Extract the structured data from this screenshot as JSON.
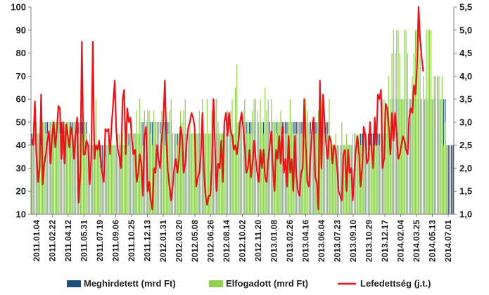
{
  "chart_data": {
    "type": "bar+line",
    "title": "",
    "x_tick_labels": [
      "2011.01.04",
      "2011.02.22",
      "2011.04.12",
      "2011.05.31",
      "2011.07.19",
      "2011.09.06",
      "2011.10.25",
      "2011.12.13",
      "2012.01.31",
      "2012.03.20",
      "2012.05.08",
      "2012.06.26",
      "2012.08.14",
      "2012.10.02",
      "2012.11.20",
      "2013.01.08",
      "2013.02.26",
      "2013.04.16",
      "2013.06.04",
      "2013.07.23",
      "2013.09.10",
      "2013.10.29",
      "2013.12.17",
      "2014.02.04",
      "2014.03.25",
      "2014.05.13",
      "2014.07.01"
    ],
    "y_left": {
      "range": [
        10,
        100
      ],
      "ticks": [
        10,
        20,
        30,
        40,
        50,
        60,
        70,
        80,
        90,
        100
      ]
    },
    "y_right": {
      "range": [
        1.0,
        5.5
      ],
      "ticks": [
        "1,0",
        "1,5",
        "2,0",
        "2,5",
        "3,0",
        "3,5",
        "4,0",
        "4,5",
        "5,0",
        "5,5"
      ]
    },
    "legend": {
      "position": "bottom",
      "items": [
        "Meghirdetett (mrd Ft)",
        "Elfogadott (mrd Ft)",
        "Lefedettség (j.t.)"
      ]
    },
    "colors": {
      "announced": "#1f4e79",
      "accepted": "#92d050",
      "coverage": "#e8141a",
      "axis": "#7f7f7f"
    },
    "series": [
      {
        "name": "Meghirdetett (mrd Ft)",
        "axis": "left",
        "kind": "bar",
        "values": [
          45,
          45,
          45,
          45,
          45,
          45,
          45,
          50,
          50,
          50,
          50,
          50,
          50,
          50,
          50,
          50,
          50,
          50,
          50,
          50,
          50,
          50,
          50,
          50,
          50,
          50,
          50,
          50,
          50,
          50,
          50,
          50,
          50,
          50,
          50,
          50,
          40,
          40,
          40,
          40,
          40,
          40,
          40,
          40,
          40,
          40,
          40,
          40,
          40,
          40,
          40,
          40,
          40,
          40,
          40,
          40,
          40,
          40,
          40,
          40,
          40,
          45,
          45,
          45,
          45,
          45,
          45,
          45,
          45,
          45,
          50,
          50,
          50,
          50,
          50,
          50,
          50,
          50,
          50,
          50,
          50,
          50,
          50,
          50,
          50,
          50,
          50,
          50,
          50,
          50,
          45,
          45,
          45,
          45,
          45,
          45,
          45,
          45,
          45,
          45,
          45,
          45,
          45,
          45,
          45,
          45,
          45,
          45,
          45,
          45,
          45,
          45,
          45,
          45,
          45,
          45,
          45,
          45,
          45,
          45,
          45,
          45,
          45,
          45,
          45,
          45,
          45,
          45,
          45,
          45,
          50,
          50,
          50,
          50,
          50,
          50,
          50,
          50,
          50,
          50,
          50,
          50,
          50,
          50,
          50,
          50,
          50,
          50,
          50,
          50,
          50,
          50,
          50,
          50,
          50,
          50,
          50,
          50,
          50,
          50,
          50,
          50,
          50,
          50,
          50,
          50,
          50,
          50,
          50,
          50,
          50,
          50,
          50,
          50,
          50,
          50,
          50,
          50,
          50,
          50,
          50,
          50,
          50,
          50,
          50,
          50,
          50,
          50,
          50,
          50,
          40,
          40,
          40,
          40,
          40,
          40,
          40,
          40,
          40,
          40,
          40,
          40,
          40,
          40,
          40,
          40,
          40,
          40,
          40,
          40,
          45,
          45,
          45,
          45,
          45,
          45,
          45,
          45,
          45,
          45,
          45,
          45,
          45,
          45,
          45,
          45,
          45,
          45,
          45,
          45,
          60,
          60,
          60,
          60,
          60,
          60,
          60,
          60,
          60,
          60,
          60,
          60,
          60,
          60,
          60,
          60,
          60,
          60,
          60,
          60,
          60,
          60,
          60,
          60,
          60,
          60,
          60,
          60,
          60,
          60,
          60,
          60,
          60,
          60,
          60,
          40,
          40,
          40,
          40,
          40
        ]
      },
      {
        "name": "Elfogadott (mrd Ft)",
        "axis": "left",
        "kind": "bar",
        "values": [
          40,
          50,
          45,
          50,
          45,
          45,
          40,
          50,
          50,
          45,
          45,
          50,
          50,
          50,
          45,
          50,
          50,
          50,
          45,
          45,
          50,
          50,
          50,
          50,
          50,
          45,
          45,
          50,
          50,
          50,
          45,
          50,
          45,
          50,
          50,
          45,
          40,
          45,
          40,
          40,
          40,
          60,
          40,
          40,
          30,
          30,
          40,
          35,
          40,
          45,
          40,
          40,
          40,
          40,
          45,
          45,
          45,
          30,
          45,
          40,
          50,
          45,
          40,
          45,
          50,
          45,
          45,
          55,
          45,
          60,
          50,
          40,
          55,
          50,
          55,
          55,
          45,
          40,
          55,
          50,
          50,
          50,
          45,
          55,
          50,
          40,
          45,
          45,
          55,
          60,
          45,
          45,
          45,
          40,
          45,
          55,
          50,
          55,
          60,
          45,
          45,
          50,
          45,
          45,
          45,
          45,
          45,
          55,
          45,
          60,
          45,
          45,
          60,
          45,
          45,
          55,
          45,
          60,
          60,
          50,
          45,
          45,
          45,
          50,
          45,
          55,
          50,
          55,
          60,
          45,
          65,
          75,
          50,
          50,
          55,
          55,
          60,
          45,
          50,
          45,
          45,
          55,
          60,
          60,
          55,
          50,
          60,
          50,
          45,
          65,
          55,
          60,
          45,
          60,
          50,
          50,
          45,
          50,
          50,
          55,
          45,
          45,
          45,
          45,
          50,
          60,
          50,
          45,
          45,
          45,
          45,
          50,
          45,
          45,
          55,
          60,
          55,
          50,
          45,
          45,
          45,
          45,
          45,
          55,
          50,
          60,
          50,
          45,
          45,
          45,
          60,
          40,
          40,
          40,
          45,
          40,
          40,
          40,
          50,
          40,
          40,
          45,
          40,
          40,
          40,
          45,
          45,
          45,
          40,
          45,
          40,
          40,
          45,
          40,
          45,
          40,
          40,
          40,
          40,
          40,
          45,
          40,
          40,
          45,
          60,
          60,
          50,
          55,
          70,
          60,
          80,
          90,
          80,
          90,
          90,
          80,
          60,
          60,
          90,
          90,
          80,
          60,
          60,
          70,
          80,
          90,
          90,
          90,
          80,
          60,
          70,
          60,
          90,
          90,
          90,
          90,
          60,
          70,
          70,
          70,
          70,
          60,
          70,
          40,
          50,
          40
        ]
      },
      {
        "name": "Lefedettség (j.t.)",
        "axis": "right",
        "kind": "line",
        "values": [
          2.65,
          2.5,
          3.45,
          2.3,
          1.7,
          2.0,
          3.6,
          1.65,
          2.1,
          2.3,
          2.6,
          2.8,
          2.1,
          2.7,
          3.0,
          2.45,
          2.8,
          3.35,
          3.3,
          2.2,
          3.0,
          2.1,
          2.95,
          2.7,
          2.45,
          2.9,
          2.7,
          2.2,
          2.7,
          3.1,
          1.25,
          1.9,
          4.75,
          2.3,
          2.3,
          2.6,
          2.5,
          1.65,
          2.2,
          4.75,
          2.2,
          2.5,
          2.4,
          2.6,
          2.2,
          1.9,
          1.7,
          2.85,
          2.8,
          2.85,
          2.3,
          2.95,
          3.4,
          3.9,
          2.8,
          2.4,
          2.25,
          2.0,
          3.5,
          3.7,
          2.3,
          3.3,
          3.0,
          3.1,
          2.6,
          2.3,
          2.4,
          1.7,
          1.9,
          2.3,
          2.1,
          1.4,
          2.7,
          2.9,
          1.5,
          1.7,
          1.3,
          1.1,
          2.0,
          1.9,
          2.5,
          2.2,
          2.0,
          2.6,
          3.0,
          3.9,
          2.6,
          1.9,
          1.6,
          1.3,
          1.6,
          2.0,
          2.2,
          1.9,
          2.2,
          2.9,
          2.7,
          1.9,
          2.1,
          2.6,
          2.9,
          3.0,
          3.2,
          3.1,
          2.9,
          1.6,
          1.8,
          1.9,
          2.3,
          3.2,
          1.9,
          1.4,
          1.2,
          1.4,
          1.4,
          2.0,
          3.5,
          2.5,
          1.5,
          2.1,
          2.0,
          2.6,
          1.7,
          3.0,
          3.2,
          2.7,
          3.2,
          2.8,
          2.7,
          2.4,
          2.5,
          2.3,
          2.6,
          3.0,
          3.2,
          2.9,
          2.5,
          1.9,
          2.0,
          2.4,
          1.8,
          2.1,
          2.6,
          2.2,
          1.9,
          1.7,
          2.4,
          2.0,
          2.4,
          1.8,
          1.7,
          2.2,
          2.5,
          2.8,
          2.0,
          1.5,
          2.4,
          2.2,
          2.7,
          2.1,
          2.9,
          1.9,
          2.2,
          1.6,
          2.7,
          1.9,
          2.2,
          1.5,
          2.7,
          1.8,
          1.5,
          1.4,
          1.9,
          2.0,
          3.5,
          2.5,
          1.7,
          1.6,
          2.3,
          2.8,
          3.1,
          1.8,
          1.7,
          1.1,
          3.9,
          2.0,
          3.6,
          3.0,
          2.5,
          2.2,
          2.7,
          2.6,
          2.1,
          2.5,
          2.4,
          2.0,
          1.5,
          1.4,
          1.3,
          2.3,
          2.4,
          1.5,
          2.4,
          1.9,
          2.0,
          1.3,
          1.9,
          2.4,
          2.7,
          2.3,
          1.6,
          2.0,
          2.9,
          2.7,
          2.1,
          2.2,
          3.0,
          2.4,
          2.0,
          3.1,
          2.5,
          3.6,
          3.5,
          3.7,
          2.0,
          2.2,
          3.4,
          3.3,
          2.9,
          2.3,
          3.2,
          2.6,
          3.2,
          2.8,
          2.2,
          2.3,
          2.5,
          2.7,
          2.6,
          2.4,
          2.3,
          3.1,
          3.3,
          3.2,
          3.8,
          3.6,
          4.2,
          5.5,
          4.8,
          4.4,
          4.1
        ]
      }
    ]
  }
}
